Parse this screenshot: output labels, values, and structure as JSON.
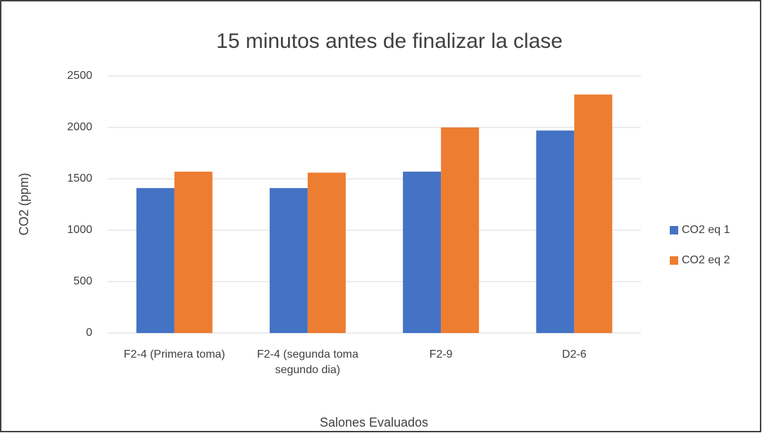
{
  "chart_data": {
    "type": "bar",
    "title": "15 minutos antes de finalizar la clase",
    "x_label": "Salones Evaluados",
    "y_label": "CO2 (ppm)",
    "categories": [
      "F2-4 (Primera toma)",
      "F2-4 (segunda toma segundo dia)",
      "F2-9",
      "D2-6"
    ],
    "series": [
      {
        "name": "CO2 eq 1",
        "color": "#4472c4",
        "values": [
          1410,
          1410,
          1570,
          1970
        ]
      },
      {
        "name": "CO2 eq 2",
        "color": "#ed7d31",
        "values": [
          1570,
          1560,
          2000,
          2320
        ]
      }
    ],
    "ylim": [
      0,
      2500
    ],
    "yticks": [
      0,
      500,
      1000,
      1500,
      2000,
      2500
    ],
    "grid": true,
    "legend": "right"
  }
}
